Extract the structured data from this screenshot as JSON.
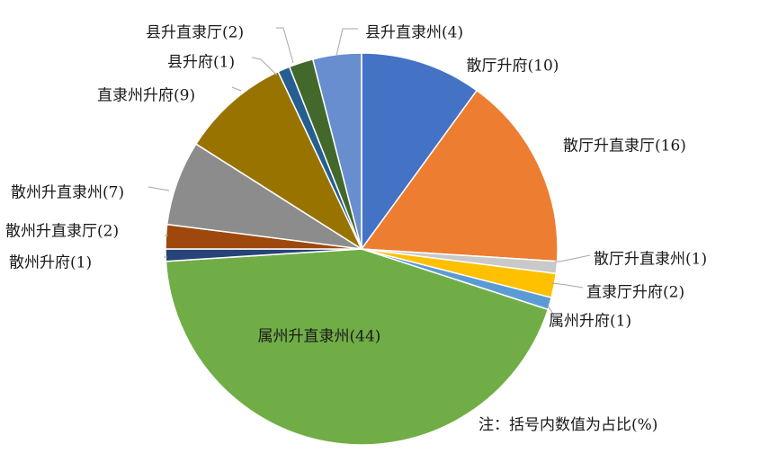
{
  "chart_data": {
    "type": "pie",
    "title": "",
    "note": "注：括号内数值为占比(%)",
    "slices": [
      {
        "label": "散厅升府(10)",
        "name": "散厅升府",
        "value": 10,
        "color": "#4472c4"
      },
      {
        "label": "散厅升直隶厅(16)",
        "name": "散厅升直隶厅",
        "value": 16,
        "color": "#ed7d31"
      },
      {
        "label": "散厅升直隶州(1)",
        "name": "散厅升直隶州",
        "value": 1,
        "color": "#c9c9c9"
      },
      {
        "label": "直隶厅升府(2)",
        "name": "直隶厅升府",
        "value": 2,
        "color": "#ffc000"
      },
      {
        "label": "属州升府(1)",
        "name": "属州升府",
        "value": 1,
        "color": "#5b9bd5"
      },
      {
        "label": "属州升直隶州(44)",
        "name": "属州升直隶州",
        "value": 44,
        "color": "#70ad47"
      },
      {
        "label": "散州升府(1)",
        "name": "散州升府",
        "value": 1,
        "color": "#264478"
      },
      {
        "label": "散州升直隶厅(2)",
        "name": "散州升直隶厅",
        "value": 2,
        "color": "#9e480e"
      },
      {
        "label": "散州升直隶州(7)",
        "name": "散州升直隶州",
        "value": 7,
        "color": "#8c8c8c"
      },
      {
        "label": "直隶州升府(9)",
        "name": "直隶州升府",
        "value": 9,
        "color": "#997300"
      },
      {
        "label": "县升府(1)",
        "name": "县升府",
        "value": 1,
        "color": "#255e91"
      },
      {
        "label": "县升直隶厅(2)",
        "name": "县升直隶厅",
        "value": 2,
        "color": "#43682b"
      },
      {
        "label": "县升直隶州(4)",
        "name": "县升直隶州",
        "value": 4,
        "color": "#698ed0"
      }
    ]
  }
}
